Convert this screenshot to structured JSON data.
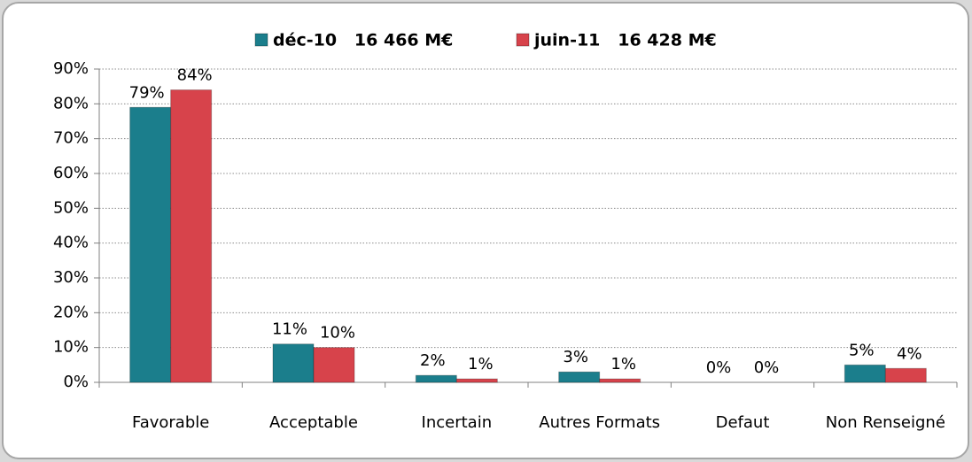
{
  "chart_data": {
    "type": "bar",
    "categories": [
      "Favorable",
      "Acceptable",
      "Incertain",
      "Autres Formats",
      "Defaut",
      "Non Renseigné"
    ],
    "series": [
      {
        "name": "déc-10   16 466 M€",
        "color": "#1b7e8c",
        "values": [
          79,
          11,
          2,
          3,
          0,
          5
        ],
        "value_labels": [
          "79%",
          "11%",
          "2%",
          "3%",
          "0%",
          "5%"
        ]
      },
      {
        "name": "juin-11   16 428 M€",
        "color": "#d7434b",
        "values": [
          84,
          10,
          1,
          1,
          0,
          4
        ],
        "value_labels": [
          "84%",
          "10%",
          "1%",
          "1%",
          "0%",
          "4%"
        ]
      }
    ],
    "ylim": [
      0,
      90
    ],
    "yticks": [
      {
        "value": 0,
        "label": "0%"
      },
      {
        "value": 10,
        "label": "10%"
      },
      {
        "value": 20,
        "label": "20%"
      },
      {
        "value": 30,
        "label": "30%"
      },
      {
        "value": 40,
        "label": "40%"
      },
      {
        "value": 50,
        "label": "50%"
      },
      {
        "value": 60,
        "label": "60%"
      },
      {
        "value": 70,
        "label": "70%"
      },
      {
        "value": 80,
        "label": "80%"
      },
      {
        "value": 90,
        "label": "90%"
      }
    ],
    "grid": true,
    "legend": "top"
  }
}
